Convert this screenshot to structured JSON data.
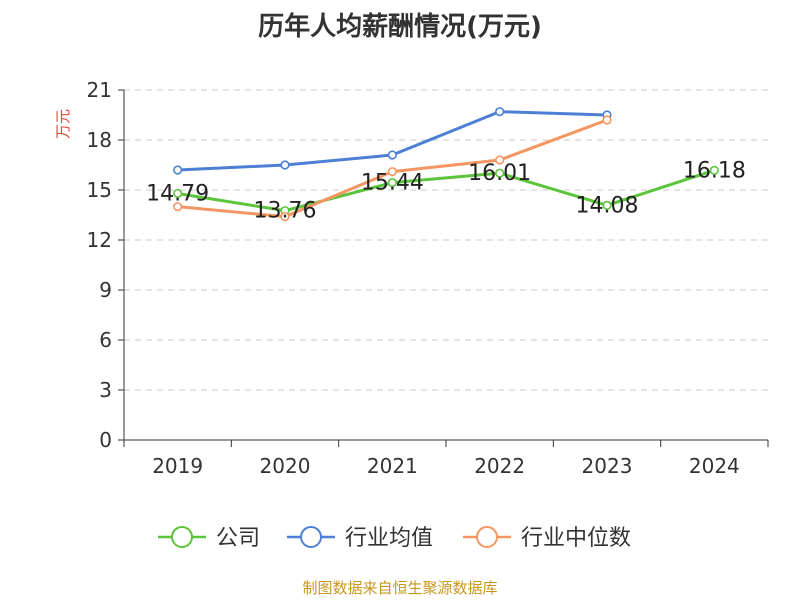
{
  "chart_data": {
    "type": "line",
    "title": "历年人均薪酬情况(万元)",
    "ylabel": "万元",
    "xlabel": "",
    "categories": [
      "2019",
      "2020",
      "2021",
      "2022",
      "2023",
      "2024"
    ],
    "ylim": [
      0,
      21
    ],
    "yticks": [
      0,
      3,
      6,
      9,
      12,
      15,
      18,
      21
    ],
    "grid": true,
    "legend_position": "bottom",
    "series": [
      {
        "name": "公司",
        "color": "#5ac53a",
        "values": [
          14.79,
          13.76,
          15.44,
          16.01,
          14.08,
          16.18
        ],
        "labels": [
          "14.79",
          "13.76",
          "15.44",
          "16.01",
          "14.08",
          "16.18"
        ]
      },
      {
        "name": "行业均值",
        "color": "#4d7fd7",
        "values": [
          16.2,
          16.5,
          17.1,
          19.7,
          19.5,
          null
        ],
        "labels": []
      },
      {
        "name": "行业中位数",
        "color": "#f59561",
        "values": [
          14.0,
          13.4,
          16.1,
          16.8,
          19.2,
          null
        ],
        "labels": []
      }
    ]
  },
  "footer": {
    "source": "制图数据来自恒生聚源数据库"
  }
}
